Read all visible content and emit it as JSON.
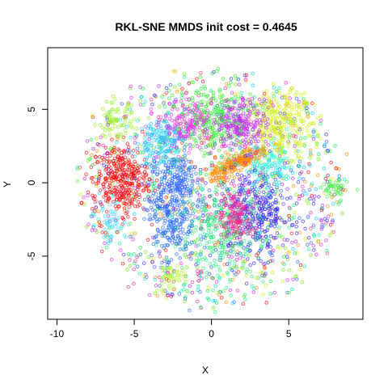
{
  "chart_data": {
    "type": "scatter",
    "title": "RKL-SNE MMDS init cost = 0.4645",
    "xlabel": "X",
    "ylabel": "Y",
    "xlim": [
      -10.6,
      9.8
    ],
    "ylim": [
      -9.3,
      9.2
    ],
    "xticks": [
      -10,
      -5,
      0,
      5
    ],
    "yticks": [
      -5,
      0,
      5
    ],
    "grid": false,
    "legend": "none",
    "marker": "open-circle",
    "clusters": [
      {
        "color": "#ff0000",
        "cx": -5.9,
        "cy": 0.2,
        "sx": 0.9,
        "sy": 1.2,
        "n": 320
      },
      {
        "color": "#2266ff",
        "cx": -2.6,
        "cy": -1.5,
        "sx": 0.8,
        "sy": 2.0,
        "n": 360
      },
      {
        "color": "#ff8800",
        "cx": 1.8,
        "cy": 1.4,
        "sx": 1.1,
        "sy": 0.3,
        "n": 260,
        "rot": 0.5
      },
      {
        "color": "#3322ff",
        "cx": 2.8,
        "cy": -2.0,
        "sx": 1.2,
        "sy": 1.5,
        "n": 330
      },
      {
        "color": "#22ee22",
        "cx": 0.2,
        "cy": 4.2,
        "sx": 1.3,
        "sy": 1.3,
        "n": 280
      },
      {
        "color": "#ccee00",
        "cx": 4.5,
        "cy": 4.0,
        "sx": 1.0,
        "sy": 1.1,
        "n": 260
      },
      {
        "color": "#cc22ff",
        "cx": 2.0,
        "cy": 4.0,
        "sx": 0.8,
        "sy": 0.9,
        "n": 200
      },
      {
        "color": "#22ccff",
        "cx": -3.3,
        "cy": 2.8,
        "sx": 0.8,
        "sy": 0.9,
        "n": 180
      },
      {
        "color": "#22ee77",
        "cx": 0.7,
        "cy": -3.5,
        "sx": 1.4,
        "sy": 1.6,
        "n": 280
      },
      {
        "color": "#ff2288",
        "cx": 1.6,
        "cy": -2.2,
        "sx": 0.6,
        "sy": 0.9,
        "n": 140
      },
      {
        "color": "#ee33ee",
        "cx": -1.5,
        "cy": 4.0,
        "sx": 0.8,
        "sy": 0.8,
        "n": 150
      },
      {
        "color": "#99ee22",
        "cx": -6.2,
        "cy": 4.2,
        "sx": 0.6,
        "sy": 0.6,
        "n": 80
      },
      {
        "color": "#22ffdd",
        "cx": 3.8,
        "cy": 1.0,
        "sx": 0.9,
        "sy": 0.8,
        "n": 110
      },
      {
        "color": "#44ee44",
        "cx": 8.0,
        "cy": -0.5,
        "sx": 0.4,
        "sy": 0.4,
        "n": 40
      },
      {
        "color": "#aaff22",
        "cx": -2.7,
        "cy": -6.4,
        "sx": 0.5,
        "sy": 0.5,
        "n": 45
      },
      {
        "color": "#33ddff",
        "cx": -6.3,
        "cy": -2.8,
        "sx": 0.6,
        "sy": 0.6,
        "n": 50
      },
      {
        "color": "#3366ff",
        "cx": -2.0,
        "cy": 0.4,
        "sx": 0.5,
        "sy": 0.7,
        "n": 70
      }
    ],
    "background_scatter": {
      "colors": [
        "#ff0000",
        "#ff8800",
        "#ccee00",
        "#66ee00",
        "#00ee44",
        "#00eeaa",
        "#00ccff",
        "#2266ff",
        "#3322ff",
        "#aa22ff",
        "#ee22ee",
        "#ff2288"
      ],
      "n": 1100,
      "spread_x": 4.0,
      "spread_y": 3.6
    }
  }
}
